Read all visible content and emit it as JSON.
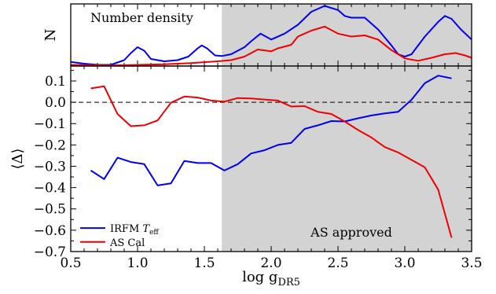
{
  "chart_data": [
    {
      "panel": "top",
      "type": "line",
      "ylabel": "N",
      "annotation": "Number density",
      "xlim": [
        0.5,
        3.5
      ],
      "ylim": [
        0,
        1
      ],
      "shaded_region": {
        "x": [
          1.63,
          3.5
        ],
        "color": "#d3d3d3"
      },
      "series": [
        {
          "name": "IRFM",
          "color": "#0000ee",
          "points": [
            [
              0.5,
              0.07
            ],
            [
              0.6,
              0.04
            ],
            [
              0.7,
              0.02
            ],
            [
              0.8,
              0.02
            ],
            [
              0.9,
              0.1
            ],
            [
              0.95,
              0.22
            ],
            [
              1.0,
              0.32
            ],
            [
              1.05,
              0.26
            ],
            [
              1.1,
              0.12
            ],
            [
              1.2,
              0.08
            ],
            [
              1.3,
              0.1
            ],
            [
              1.38,
              0.16
            ],
            [
              1.45,
              0.3
            ],
            [
              1.48,
              0.35
            ],
            [
              1.52,
              0.3
            ],
            [
              1.58,
              0.18
            ],
            [
              1.63,
              0.17
            ],
            [
              1.7,
              0.2
            ],
            [
              1.8,
              0.32
            ],
            [
              1.85,
              0.42
            ],
            [
              1.92,
              0.55
            ],
            [
              2.0,
              0.45
            ],
            [
              2.1,
              0.55
            ],
            [
              2.2,
              0.7
            ],
            [
              2.3,
              0.92
            ],
            [
              2.4,
              1.02
            ],
            [
              2.5,
              0.95
            ],
            [
              2.55,
              0.85
            ],
            [
              2.6,
              0.82
            ],
            [
              2.7,
              0.82
            ],
            [
              2.8,
              0.62
            ],
            [
              2.9,
              0.35
            ],
            [
              2.95,
              0.2
            ],
            [
              3.0,
              0.16
            ],
            [
              3.05,
              0.2
            ],
            [
              3.15,
              0.5
            ],
            [
              3.25,
              0.75
            ],
            [
              3.3,
              0.85
            ],
            [
              3.35,
              0.8
            ],
            [
              3.42,
              0.62
            ],
            [
              3.5,
              0.45
            ]
          ]
        },
        {
          "name": "AS Cal",
          "color": "#ee0000",
          "points": [
            [
              0.5,
              0.02
            ],
            [
              0.8,
              0.01
            ],
            [
              1.0,
              0.02
            ],
            [
              1.2,
              0.03
            ],
            [
              1.4,
              0.05
            ],
            [
              1.6,
              0.08
            ],
            [
              1.7,
              0.1
            ],
            [
              1.8,
              0.16
            ],
            [
              1.9,
              0.28
            ],
            [
              2.0,
              0.25
            ],
            [
              2.05,
              0.3
            ],
            [
              2.15,
              0.36
            ],
            [
              2.2,
              0.5
            ],
            [
              2.3,
              0.6
            ],
            [
              2.4,
              0.67
            ],
            [
              2.5,
              0.55
            ],
            [
              2.6,
              0.5
            ],
            [
              2.7,
              0.52
            ],
            [
              2.8,
              0.45
            ],
            [
              2.9,
              0.27
            ],
            [
              3.0,
              0.13
            ],
            [
              3.1,
              0.09
            ],
            [
              3.2,
              0.14
            ],
            [
              3.3,
              0.2
            ],
            [
              3.38,
              0.22
            ],
            [
              3.45,
              0.18
            ],
            [
              3.5,
              0.14
            ]
          ]
        }
      ]
    },
    {
      "panel": "bottom",
      "type": "line",
      "xlabel": "log g_DR5",
      "xlabel_main": "log g",
      "xlabel_sub": "DR5",
      "ylabel": "⟨Δ⟩",
      "xlim": [
        0.5,
        3.5
      ],
      "ylim": [
        -0.7,
        0.17
      ],
      "xticks": [
        0.5,
        1.0,
        1.5,
        2.0,
        2.5,
        3.0,
        3.5
      ],
      "xtick_labels": [
        "0.5",
        "1.0",
        "1.5",
        "2.0",
        "2.5",
        "3.0",
        "3.5"
      ],
      "yticks": [
        0.1,
        0.0,
        -0.1,
        -0.2,
        -0.3,
        -0.4,
        -0.5,
        -0.6,
        -0.7
      ],
      "ytick_labels": [
        "0.1",
        "0.0",
        "−0.1",
        "−0.2",
        "−0.3",
        "−0.4",
        "−0.5",
        "−0.6",
        "−0.7"
      ],
      "reference_line": {
        "y": 0.0,
        "style": "dashed"
      },
      "shaded_region": {
        "x": [
          1.63,
          3.5
        ],
        "color": "#d3d3d3"
      },
      "annotation": "AS approved",
      "legend": {
        "placement": "bottom-left",
        "entries": [
          {
            "label_main": "IRFM ",
            "label_italic": "T",
            "label_sub": "eff",
            "color": "#0000ee"
          },
          {
            "label_main": "AS Cal",
            "label_italic": "",
            "label_sub": "",
            "color": "#ee0000"
          }
        ]
      },
      "series": [
        {
          "name": "IRFM Teff",
          "color": "#0000ee",
          "x": [
            0.65,
            0.75,
            0.85,
            0.95,
            1.05,
            1.15,
            1.25,
            1.35,
            1.45,
            1.55,
            1.65,
            1.75,
            1.85,
            1.95,
            2.05,
            2.15,
            2.25,
            2.35,
            2.45,
            2.55,
            2.65,
            2.75,
            2.85,
            2.95,
            3.05,
            3.15,
            3.25,
            3.35
          ],
          "y": [
            -0.32,
            -0.36,
            -0.26,
            -0.28,
            -0.29,
            -0.39,
            -0.38,
            -0.275,
            -0.285,
            -0.285,
            -0.32,
            -0.29,
            -0.24,
            -0.225,
            -0.2,
            -0.19,
            -0.125,
            -0.108,
            -0.088,
            -0.09,
            -0.075,
            -0.062,
            -0.052,
            -0.045,
            0.012,
            0.09,
            0.125,
            0.112
          ]
        },
        {
          "name": "AS Cal",
          "color": "#ee0000",
          "x": [
            0.65,
            0.75,
            0.85,
            0.95,
            1.05,
            1.15,
            1.25,
            1.35,
            1.45,
            1.55,
            1.65,
            1.75,
            1.85,
            1.95,
            2.05,
            2.15,
            2.25,
            2.35,
            2.45,
            2.55,
            2.65,
            2.75,
            2.85,
            2.95,
            3.05,
            3.15,
            3.25,
            3.35
          ],
          "y": [
            0.065,
            0.075,
            -0.055,
            -0.112,
            -0.108,
            -0.085,
            -0.002,
            0.027,
            0.022,
            0.008,
            0.003,
            0.02,
            0.018,
            0.013,
            0.008,
            -0.02,
            -0.018,
            -0.045,
            -0.055,
            -0.09,
            -0.13,
            -0.165,
            -0.21,
            -0.235,
            -0.27,
            -0.305,
            -0.41,
            -0.635
          ]
        }
      ]
    }
  ]
}
